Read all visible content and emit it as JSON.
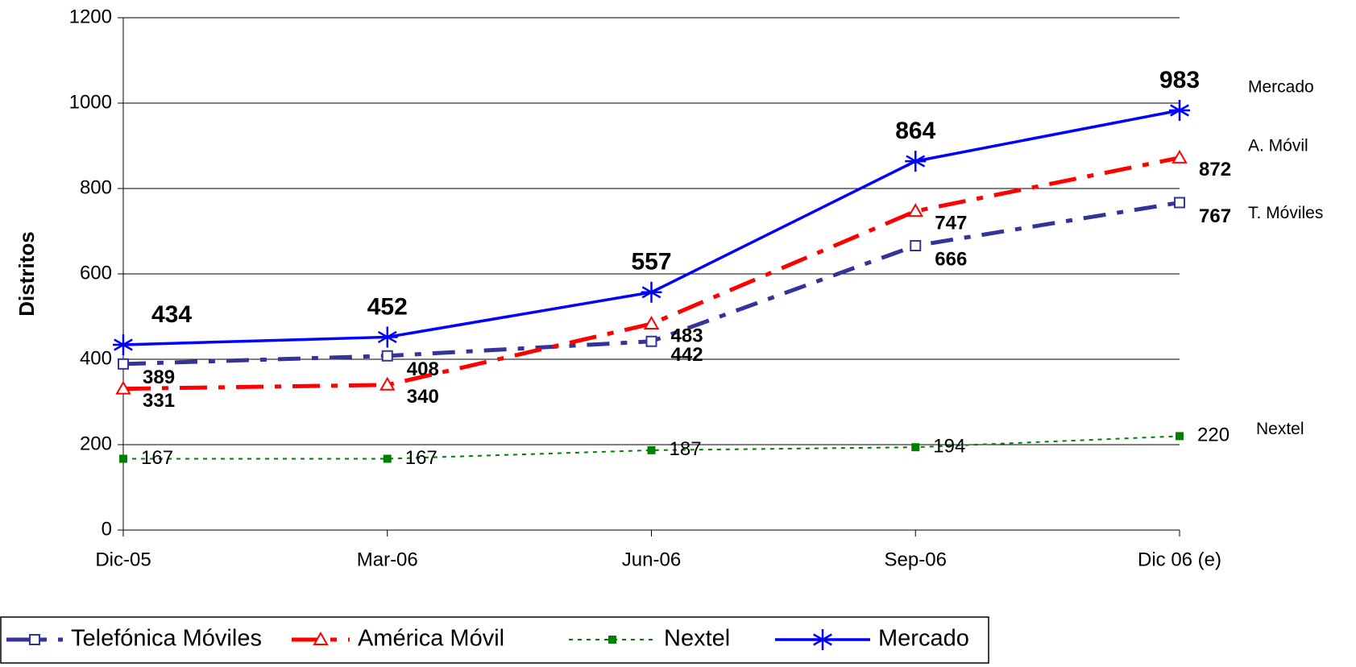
{
  "chart_data": {
    "type": "line",
    "y_axis_label": "Distritos",
    "categories": [
      "Dic-05",
      "Mar-06",
      "Jun-06",
      "Sep-06",
      "Dic 06 (e)"
    ],
    "ylim": [
      0,
      1200
    ],
    "yticks": [
      0,
      200,
      400,
      600,
      800,
      1000,
      1200
    ],
    "grid": true,
    "legend": "bottom",
    "series": [
      {
        "name": "Telefónica Móviles",
        "label": "T. Móviles",
        "color": "#333399",
        "values": [
          389,
          408,
          442,
          666,
          767
        ]
      },
      {
        "name": "América Móvil",
        "label": "A. Móvil",
        "color": "#ff0000",
        "values": [
          331,
          340,
          483,
          747,
          872
        ]
      },
      {
        "name": "Nextel",
        "label": "Nextel",
        "color": "#008000",
        "values": [
          167,
          167,
          187,
          194,
          220
        ]
      },
      {
        "name": "Mercado",
        "label": "Mercado",
        "color": "#0000ff",
        "values": [
          434,
          452,
          557,
          864,
          983
        ]
      }
    ]
  }
}
